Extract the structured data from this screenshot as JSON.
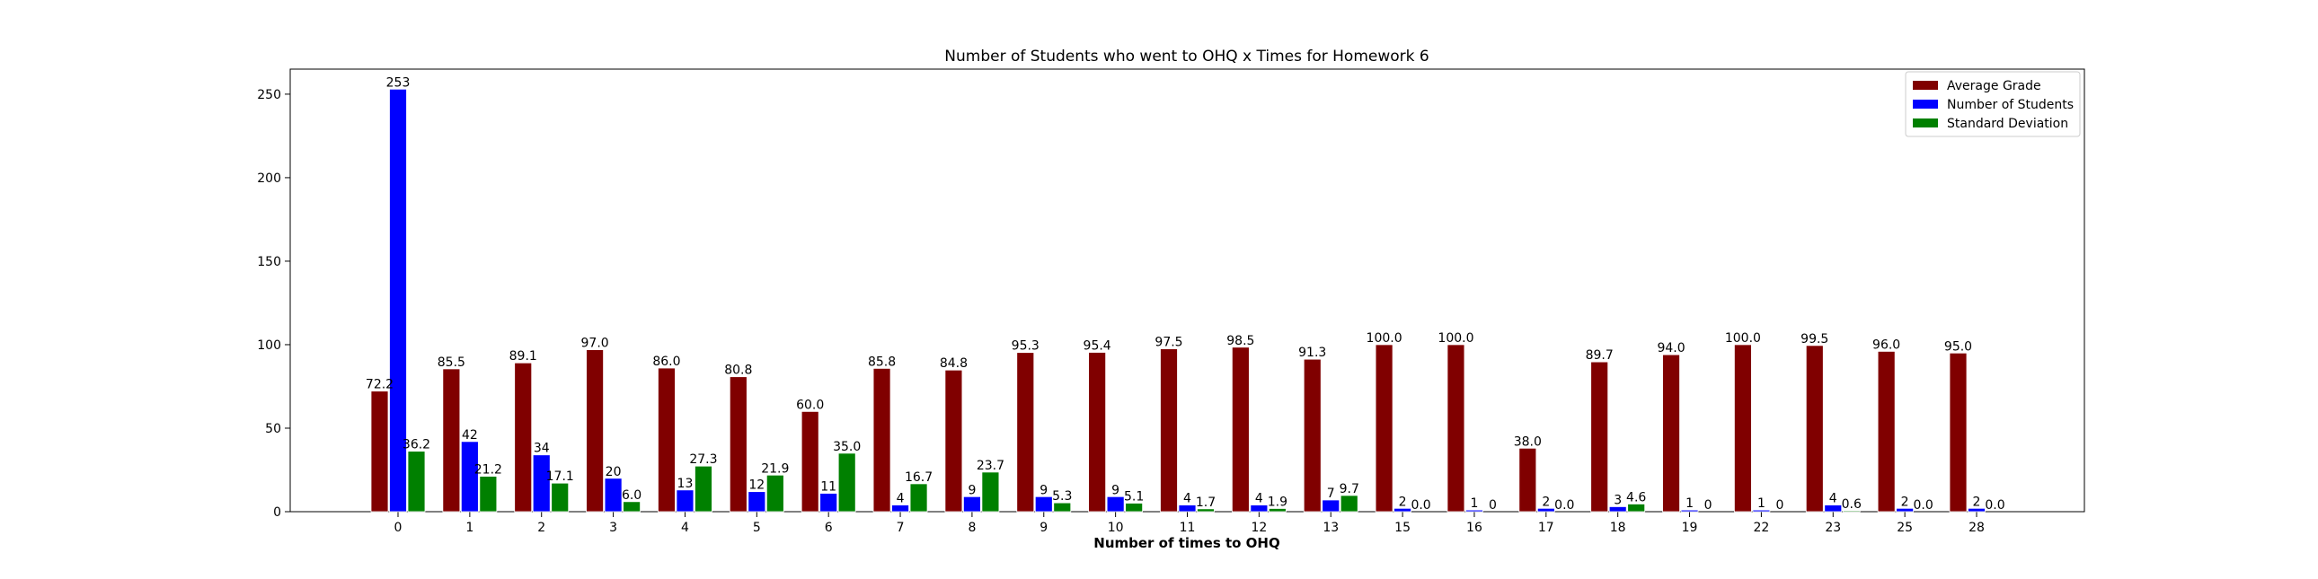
{
  "chart_data": {
    "type": "bar",
    "title": "Number of Students who went to OHQ x Times for Homework 6",
    "xlabel": "Number of times to OHQ",
    "ylabel": "",
    "categories": [
      "0",
      "1",
      "2",
      "3",
      "4",
      "5",
      "6",
      "7",
      "8",
      "9",
      "10",
      "11",
      "12",
      "13",
      "15",
      "16",
      "17",
      "18",
      "19",
      "22",
      "23",
      "25",
      "28"
    ],
    "ylim": [
      0,
      265
    ],
    "yticks": [
      0,
      50,
      100,
      150,
      200,
      250
    ],
    "grid": false,
    "legend_position": "top-right",
    "series": [
      {
        "name": "Average Grade",
        "color": "#800000",
        "values": [
          72.2,
          85.5,
          89.1,
          97.0,
          86.0,
          80.8,
          60.0,
          85.8,
          84.8,
          95.3,
          95.4,
          97.5,
          98.5,
          91.3,
          100.0,
          100.0,
          38.0,
          89.7,
          94.0,
          100.0,
          99.5,
          96.0,
          95.0
        ],
        "labels": [
          "72.2",
          "85.5",
          "89.1",
          "97.0",
          "86.0",
          "80.8",
          "60.0",
          "85.8",
          "84.8",
          "95.3",
          "95.4",
          "97.5",
          "98.5",
          "91.3",
          "100.0",
          "100.0",
          "38.0",
          "89.7",
          "94.0",
          "100.0",
          "99.5",
          "96.0",
          "95.0"
        ]
      },
      {
        "name": "Number of Students",
        "color": "#0000ff",
        "values": [
          253,
          42,
          34,
          20,
          13,
          12,
          11,
          4,
          9,
          9,
          9,
          4,
          4,
          7,
          2,
          1,
          2,
          3,
          1,
          1,
          4,
          2,
          2
        ],
        "labels": [
          "253",
          "42",
          "34",
          "20",
          "13",
          "12",
          "11",
          "4",
          "9",
          "9",
          "9",
          "4",
          "4",
          "7",
          "2",
          "1",
          "2",
          "3",
          "1",
          "1",
          "4",
          "2",
          "2"
        ]
      },
      {
        "name": "Standard Deviation",
        "color": "#008000",
        "values": [
          36.2,
          21.2,
          17.1,
          6.0,
          27.3,
          21.9,
          35.0,
          16.7,
          23.7,
          5.3,
          5.1,
          1.7,
          1.9,
          9.7,
          0.0,
          0,
          0.0,
          4.6,
          0,
          0,
          0.6,
          0.0,
          0.0
        ],
        "labels": [
          "36.2",
          "21.2",
          "17.1",
          "6.0",
          "27.3",
          "21.9",
          "35.0",
          "16.7",
          "23.7",
          "5.3",
          "5.1",
          "1.7",
          "1.9",
          "9.7",
          "0.0",
          "0",
          "0.0",
          "4.6",
          "0",
          "0",
          "0.6",
          "0.0",
          "0.0"
        ]
      }
    ]
  }
}
